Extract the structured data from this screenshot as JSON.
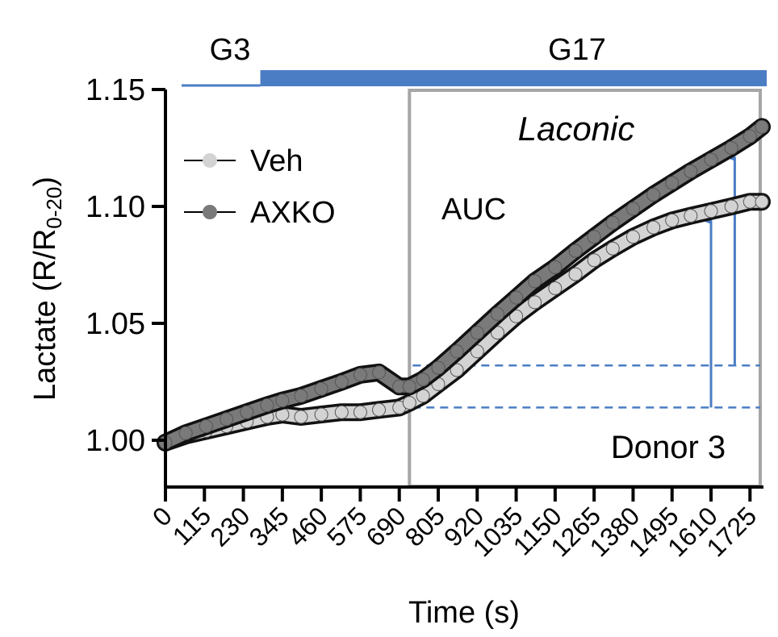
{
  "chart_data": {
    "type": "line",
    "title": "",
    "xlabel": "Time (s)",
    "ylabel_main": "Lactate (R/R",
    "ylabel_sub": "0-20",
    "ylabel_end": ")",
    "xlim": [
      0,
      1760
    ],
    "ylim": [
      0.98,
      1.15
    ],
    "y_ticks": [
      1.0,
      1.05,
      1.1,
      1.15
    ],
    "y_tick_labels": [
      "1.00",
      "1.05",
      "1.10",
      "1.15"
    ],
    "x_ticks": [
      0,
      115,
      230,
      345,
      460,
      575,
      690,
      805,
      920,
      1035,
      1150,
      1265,
      1380,
      1495,
      1610,
      1725
    ],
    "x_tick_labels": [
      "0",
      "115",
      "230",
      "345",
      "460",
      "575",
      "690",
      "805",
      "920",
      "1035",
      "1150",
      "1265",
      "1380",
      "1495",
      "1610",
      "1725"
    ],
    "legend_position": "top-left",
    "glucose_bar": {
      "low_label": "G3",
      "high_label": "G17",
      "low_range": [
        0,
        280
      ],
      "high_range": [
        280,
        1760
      ],
      "color": "#4a7dc4"
    },
    "box": {
      "label": "AUC",
      "x_range": [
        720,
        1760
      ],
      "color": "#a6a6a6"
    },
    "sensor_label": "Laconic",
    "sensor_color": "#4fc3e8",
    "donor_label": "Donor 3",
    "baselines": [
      1.032,
      1.014
    ],
    "arrows": [
      {
        "x": 1610,
        "from": 1.014,
        "to": 1.094
      },
      {
        "x": 1680,
        "from": 1.032,
        "to": 1.121
      }
    ],
    "arrow_color": "#4a7dc4",
    "series": [
      {
        "name": "Veh",
        "color": "#d3d3d3",
        "x": [
          0,
          60,
          120,
          180,
          240,
          300,
          345,
          400,
          460,
          520,
          575,
          630,
          690,
          720,
          760,
          805,
          860,
          920,
          980,
          1035,
          1090,
          1150,
          1210,
          1265,
          1320,
          1380,
          1440,
          1495,
          1550,
          1610,
          1670,
          1725,
          1760
        ],
        "y": [
          0.999,
          1.002,
          1.004,
          1.006,
          1.008,
          1.01,
          1.011,
          1.01,
          1.011,
          1.012,
          1.012,
          1.013,
          1.014,
          1.016,
          1.019,
          1.024,
          1.03,
          1.038,
          1.046,
          1.053,
          1.059,
          1.065,
          1.071,
          1.077,
          1.082,
          1.087,
          1.091,
          1.094,
          1.096,
          1.098,
          1.1,
          1.102,
          1.102
        ]
      },
      {
        "name": "AXKO",
        "color": "#7a7a7a",
        "x": [
          0,
          60,
          120,
          180,
          240,
          300,
          345,
          400,
          460,
          520,
          575,
          630,
          690,
          720,
          760,
          805,
          860,
          920,
          980,
          1035,
          1090,
          1150,
          1210,
          1265,
          1320,
          1380,
          1440,
          1495,
          1550,
          1610,
          1670,
          1725,
          1760
        ],
        "y": [
          0.999,
          1.003,
          1.006,
          1.009,
          1.012,
          1.015,
          1.017,
          1.019,
          1.022,
          1.025,
          1.028,
          1.029,
          1.023,
          1.023,
          1.026,
          1.031,
          1.038,
          1.046,
          1.054,
          1.061,
          1.068,
          1.074,
          1.081,
          1.087,
          1.093,
          1.099,
          1.105,
          1.11,
          1.115,
          1.12,
          1.125,
          1.13,
          1.134
        ]
      }
    ]
  }
}
